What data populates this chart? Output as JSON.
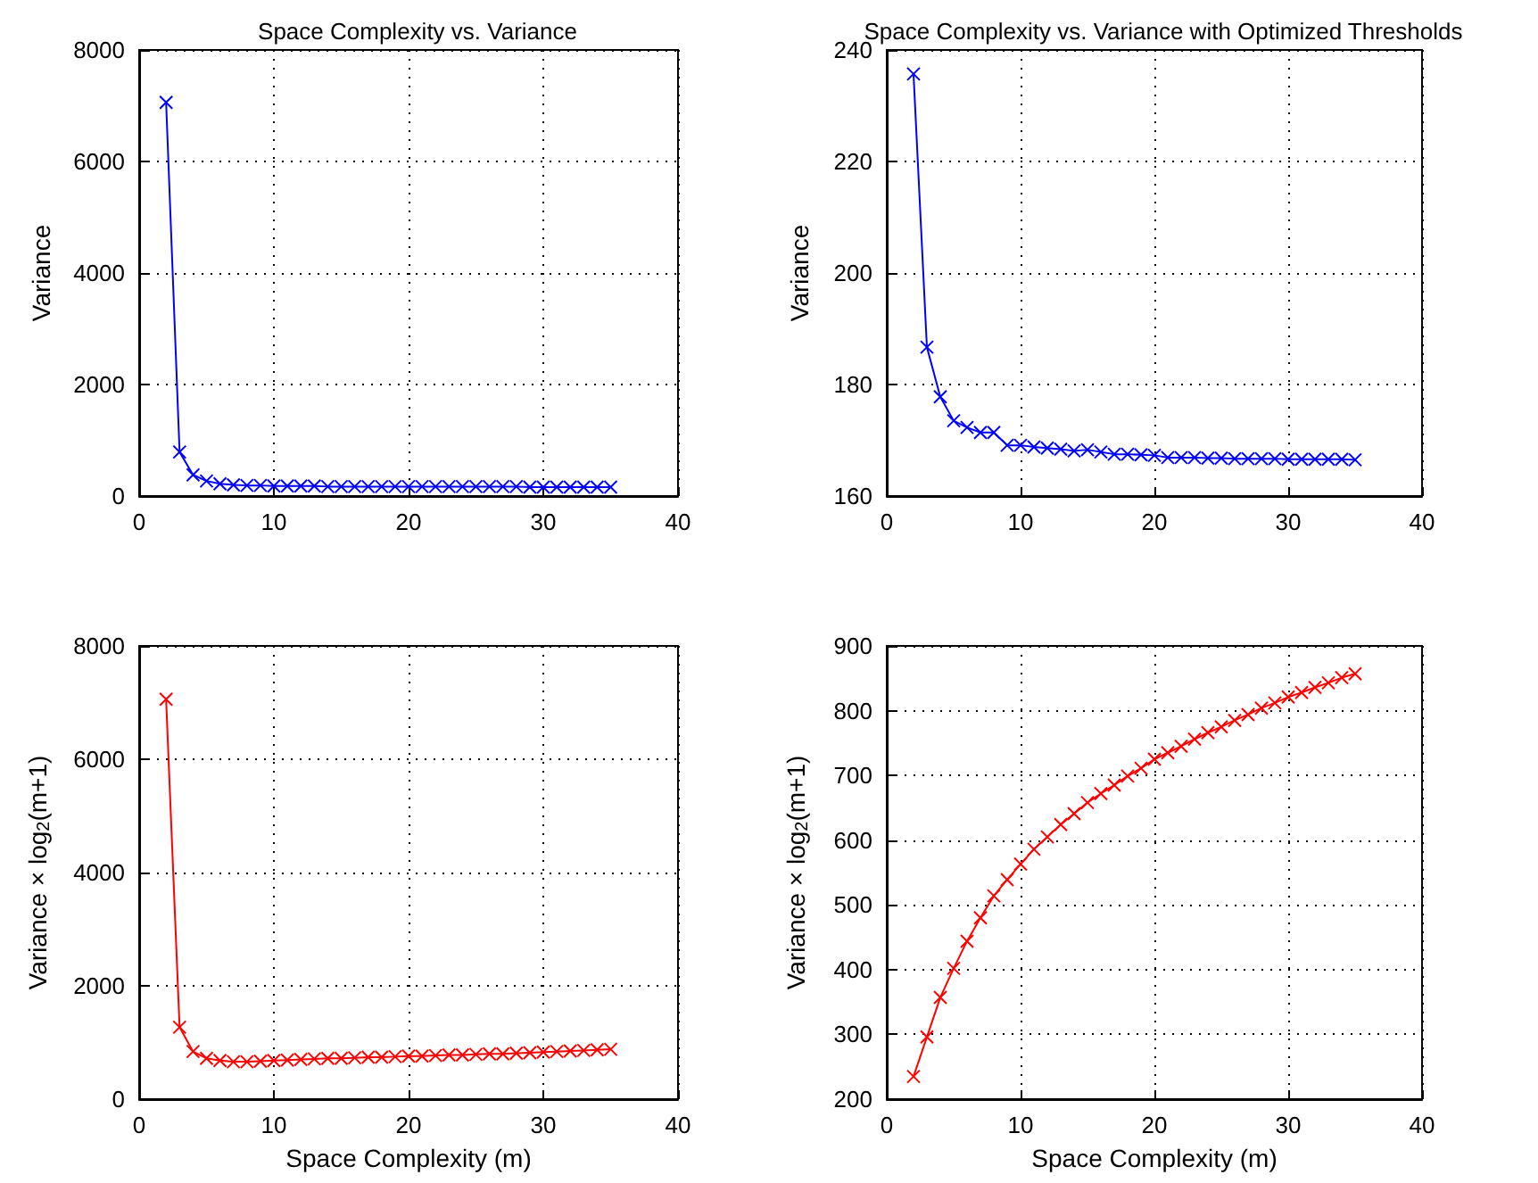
{
  "chart_data": [
    {
      "type": "line",
      "title": "Space Complexity vs. Variance",
      "ylabel": "Variance",
      "x": [
        2,
        3,
        4,
        5,
        6,
        7,
        8,
        9,
        10,
        11,
        12,
        13,
        14,
        15,
        16,
        17,
        18,
        19,
        20,
        21,
        22,
        23,
        24,
        25,
        26,
        27,
        28,
        29,
        30,
        31,
        32,
        33,
        34,
        35
      ],
      "xlim": [
        0,
        40
      ],
      "xticks": [
        0,
        10,
        20,
        30,
        40
      ],
      "ylim": [
        0,
        8000
      ],
      "yticks": [
        0,
        2000,
        4000,
        6000,
        8000
      ],
      "grid": true,
      "marker": "cross",
      "line_style": "solid",
      "series": [
        {
          "color": "#0000ff",
          "values": [
            7060,
            790,
            380,
            270,
            220,
            200,
            190,
            190,
            180,
            180,
            180,
            180,
            170,
            170,
            170,
            170,
            170,
            170,
            170,
            170,
            170,
            170,
            170,
            170,
            170,
            170,
            170,
            160,
            160,
            160,
            160,
            160,
            160,
            160
          ]
        }
      ]
    },
    {
      "type": "line",
      "title": "Space Complexity vs. Variance with Optimized Thresholds",
      "ylabel": "Variance",
      "x": [
        2,
        3,
        4,
        5,
        6,
        7,
        8,
        9,
        10,
        11,
        12,
        13,
        14,
        15,
        16,
        17,
        18,
        19,
        20,
        21,
        22,
        23,
        24,
        25,
        26,
        27,
        28,
        29,
        30,
        31,
        32,
        33,
        34,
        35
      ],
      "xlim": [
        0,
        40
      ],
      "xticks": [
        0,
        10,
        20,
        30,
        40
      ],
      "ylim": [
        160,
        240
      ],
      "yticks": [
        160,
        180,
        200,
        220,
        240
      ],
      "grid": true,
      "marker": "cross",
      "line_style": "solid",
      "series": [
        {
          "color": "#0000ff",
          "values": [
            235.7,
            186.7,
            177.8,
            173.5,
            172.3,
            171.4,
            171.4,
            169.1,
            169.1,
            168.8,
            168.6,
            168.4,
            168.1,
            168.3,
            167.9,
            167.5,
            167.5,
            167.4,
            167.3,
            166.9,
            166.9,
            166.9,
            166.8,
            166.8,
            166.7,
            166.7,
            166.7,
            166.7,
            166.6,
            166.6,
            166.6,
            166.6,
            166.6,
            166.5
          ]
        }
      ]
    },
    {
      "type": "line",
      "xlabel": "Space Complexity (m)",
      "ylabel": "Variance × log$_{2}$(m+1)",
      "x": [
        2,
        3,
        4,
        5,
        6,
        7,
        8,
        9,
        10,
        11,
        12,
        13,
        14,
        15,
        16,
        17,
        18,
        19,
        20,
        21,
        22,
        23,
        24,
        25,
        26,
        27,
        28,
        29,
        30,
        31,
        32,
        33,
        34,
        35
      ],
      "xlim": [
        0,
        40
      ],
      "xticks": [
        0,
        10,
        20,
        30,
        40
      ],
      "ylim": [
        0,
        8000
      ],
      "yticks": [
        0,
        2000,
        4000,
        6000,
        8000
      ],
      "grid": true,
      "marker": "cross",
      "line_style": "solid",
      "series": [
        {
          "color": "#ff0000",
          "values": [
            7060,
            1270,
            840,
            720,
            680,
            660,
            660,
            670,
            680,
            690,
            700,
            710,
            720,
            720,
            730,
            740,
            740,
            750,
            760,
            760,
            770,
            780,
            780,
            790,
            800,
            800,
            810,
            820,
            830,
            840,
            850,
            860,
            870,
            880
          ]
        }
      ]
    },
    {
      "type": "line",
      "xlabel": "Space Complexity (m)",
      "ylabel": "Variance × log$_{2}$(m+1)",
      "x": [
        2,
        3,
        4,
        5,
        6,
        7,
        8,
        9,
        10,
        11,
        12,
        13,
        14,
        15,
        16,
        17,
        18,
        19,
        20,
        21,
        22,
        23,
        24,
        25,
        26,
        27,
        28,
        29,
        30,
        31,
        32,
        33,
        34,
        35
      ],
      "xlim": [
        0,
        40
      ],
      "xticks": [
        0,
        10,
        20,
        30,
        40
      ],
      "ylim": [
        200,
        900
      ],
      "yticks": [
        200,
        300,
        400,
        500,
        600,
        700,
        800,
        900
      ],
      "grid": true,
      "marker": "cross",
      "line_style": "solid",
      "series": [
        {
          "color": "#ff0000",
          "values": [
            235,
            296,
            357,
            402,
            444,
            480,
            514,
            539,
            563,
            586,
            605,
            624,
            641,
            658,
            672,
            685,
            699,
            711,
            725,
            735,
            745,
            756,
            766,
            775,
            785,
            794,
            804,
            812,
            821,
            828,
            836,
            843,
            851,
            857
          ]
        }
      ]
    }
  ]
}
